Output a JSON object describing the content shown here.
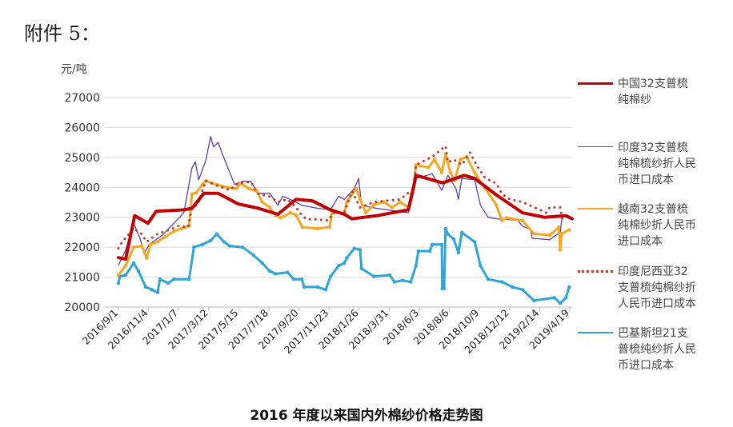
{
  "heading": "附件 5：",
  "chart_data": {
    "type": "line",
    "title": "2016 年度以来国内外棉纱价格走势图",
    "ylabel": "元/吨",
    "ylim": [
      20000,
      27000
    ],
    "yticks": [
      "20000",
      "21000",
      "22000",
      "23000",
      "24000",
      "25000",
      "26000",
      "27000"
    ],
    "xticks": [
      "2016/9/1",
      "2016/11/4",
      "2017/1/7",
      "2017/3/12",
      "2017/5/15",
      "2017/7/18",
      "2017/9/20",
      "2017/11/23",
      "2018/1/26",
      "2018/3/31",
      "2018/6/3",
      "2018/8/6",
      "2018/10/9",
      "2018/12/12",
      "2019/2/14",
      "2019/4/19"
    ],
    "grid": true,
    "legend_position": "right",
    "series": [
      {
        "name": "中国32支普梳纯棉纱",
        "color": "#c00000",
        "style": "solid-thick",
        "points": [
          [
            "2016/9/1",
            21650
          ],
          [
            "2016/9/16",
            21600
          ],
          [
            "2016/10/5",
            23050
          ],
          [
            "2016/11/2",
            22800
          ],
          [
            "2016/11/19",
            23200
          ],
          [
            "2017/1/16",
            23250
          ],
          [
            "2017/2/2",
            23300
          ],
          [
            "2017/2/27",
            23800
          ],
          [
            "2017/3/29",
            23800
          ],
          [
            "2017/5/9",
            23450
          ],
          [
            "2017/6/21",
            23300
          ],
          [
            "2017/8/1",
            23100
          ],
          [
            "2017/9/8",
            23600
          ],
          [
            "2017/10/12",
            23550
          ],
          [
            "2017/11/19",
            23250
          ],
          [
            "2017/12/18",
            23100
          ],
          [
            "2018/1/3",
            22950
          ],
          [
            "2018/2/23",
            23050
          ],
          [
            "2018/5/1",
            23250
          ],
          [
            "2018/5/12",
            24000
          ],
          [
            "2018/5/17",
            24400
          ],
          [
            "2018/7/12",
            24150
          ],
          [
            "2018/8/26",
            24400
          ],
          [
            "2018/9/17",
            24300
          ],
          [
            "2018/11/1",
            23750
          ],
          [
            "2018/12/26",
            23150
          ],
          [
            "2019/2/10",
            23000
          ],
          [
            "2019/3/27",
            23050
          ],
          [
            "2019/4/9",
            22950
          ]
        ]
      },
      {
        "name": "印度32支普梳纯棉梳纱折人民币进口成本",
        "color": "#5b3fb0",
        "style": "solid-thin",
        "points": [
          [
            "2016/9/1",
            21400
          ],
          [
            "2016/9/16",
            21900
          ],
          [
            "2016/10/3",
            22800
          ],
          [
            "2016/10/16",
            22300
          ],
          [
            "2016/10/25",
            21800
          ],
          [
            "2016/11/5",
            22100
          ],
          [
            "2016/12/2",
            22400
          ],
          [
            "2016/12/26",
            22800
          ],
          [
            "2017/1/16",
            23150
          ],
          [
            "2017/2/2",
            24650
          ],
          [
            "2017/2/9",
            24850
          ],
          [
            "2017/2/16",
            24250
          ],
          [
            "2017/3/3",
            24900
          ],
          [
            "2017/3/13",
            25700
          ],
          [
            "2017/3/19",
            25350
          ],
          [
            "2017/3/29",
            25500
          ],
          [
            "2017/4/7",
            25100
          ],
          [
            "2017/5/2",
            24100
          ],
          [
            "2017/5/19",
            24200
          ],
          [
            "2017/6/5",
            24200
          ],
          [
            "2017/6/21",
            23800
          ],
          [
            "2017/7/15",
            23800
          ],
          [
            "2017/8/1",
            23400
          ],
          [
            "2017/8/11",
            23700
          ],
          [
            "2017/8/27",
            23600
          ],
          [
            "2017/9/20",
            23400
          ],
          [
            "2017/10/23",
            23300
          ],
          [
            "2017/11/19",
            23250
          ],
          [
            "2017/12/6",
            23700
          ],
          [
            "2017/12/18",
            23600
          ],
          [
            "2018/1/8",
            23960
          ],
          [
            "2018/1/17",
            24300
          ],
          [
            "2018/1/23",
            23400
          ],
          [
            "2018/2/23",
            23300
          ],
          [
            "2018/5/1",
            23150
          ],
          [
            "2018/5/17",
            24300
          ],
          [
            "2018/6/20",
            24450
          ],
          [
            "2018/7/10",
            23900
          ],
          [
            "2018/7/23",
            24400
          ],
          [
            "2018/8/9",
            23950
          ],
          [
            "2018/8/14",
            23600
          ],
          [
            "2018/8/21",
            24300
          ],
          [
            "2018/9/17",
            24250
          ],
          [
            "2018/9/29",
            23400
          ],
          [
            "2018/10/15",
            23000
          ],
          [
            "2018/11/1",
            22950
          ],
          [
            "2018/12/16",
            22900
          ],
          [
            "2018/12/26",
            22700
          ],
          [
            "2019/1/12",
            22600
          ],
          [
            "2019/1/15",
            22300
          ],
          [
            "2019/2/21",
            22250
          ],
          [
            "2019/3/15",
            22500
          ],
          [
            "2019/3/18",
            22900
          ]
        ]
      },
      {
        "name": "越南32支普梳纯棉纱折人民币进口成本",
        "color": "#f5a623",
        "style": "solid-marker",
        "points": [
          [
            "2016/9/1",
            21070
          ],
          [
            "2016/9/16",
            21380
          ],
          [
            "2016/10/3",
            22000
          ],
          [
            "2016/10/20",
            22040
          ],
          [
            "2016/10/30",
            21640
          ],
          [
            "2016/11/7",
            22090
          ],
          [
            "2016/11/22",
            22180
          ],
          [
            "2016/12/8",
            22350
          ],
          [
            "2016/12/26",
            22530
          ],
          [
            "2017/1/11",
            22620
          ],
          [
            "2017/1/27",
            22710
          ],
          [
            "2017/2/2",
            23780
          ],
          [
            "2017/2/11",
            23820
          ],
          [
            "2017/2/24",
            24090
          ],
          [
            "2017/3/3",
            24220
          ],
          [
            "2017/3/26",
            24090
          ],
          [
            "2017/4/17",
            24000
          ],
          [
            "2017/5/6",
            23960
          ],
          [
            "2017/5/15",
            24130
          ],
          [
            "2017/6/1",
            23960
          ],
          [
            "2017/6/18",
            23870
          ],
          [
            "2017/6/29",
            23510
          ],
          [
            "2017/7/15",
            23330
          ],
          [
            "2017/7/27",
            23070
          ],
          [
            "2017/8/7",
            22980
          ],
          [
            "2017/8/27",
            23150
          ],
          [
            "2017/9/8",
            23070
          ],
          [
            "2017/9/21",
            22670
          ],
          [
            "2017/10/23",
            22620
          ],
          [
            "2017/11/17",
            22670
          ],
          [
            "2017/11/22",
            23150
          ],
          [
            "2017/12/18",
            23150
          ],
          [
            "2017/12/23",
            23510
          ],
          [
            "2018/1/12",
            23960
          ],
          [
            "2018/1/20",
            23600
          ],
          [
            "2018/2/1",
            23150
          ],
          [
            "2018/2/18",
            23420
          ],
          [
            "2018/3/11",
            23510
          ],
          [
            "2018/3/28",
            23330
          ],
          [
            "2018/4/14",
            23510
          ],
          [
            "2018/5/1",
            23330
          ],
          [
            "2018/5/14",
            24220
          ],
          [
            "2018/5/17",
            24750
          ],
          [
            "2018/6/12",
            24660
          ],
          [
            "2018/6/25",
            24930
          ],
          [
            "2018/7/10",
            24490
          ],
          [
            "2018/7/18",
            25110
          ],
          [
            "2018/7/28",
            24490
          ],
          [
            "2018/8/6",
            24220
          ],
          [
            "2018/8/18",
            24930
          ],
          [
            "2018/8/31",
            25020
          ],
          [
            "2018/9/17",
            24490
          ],
          [
            "2018/10/9",
            23960
          ],
          [
            "2018/11/1",
            23420
          ],
          [
            "2018/11/13",
            22890
          ],
          [
            "2018/11/23",
            22980
          ],
          [
            "2018/12/26",
            22890
          ],
          [
            "2019/1/19",
            22450
          ],
          [
            "2019/2/21",
            22400
          ],
          [
            "2019/3/12",
            22670
          ],
          [
            "2019/3/15",
            21910
          ],
          [
            "2019/3/18",
            22450
          ],
          [
            "2019/4/3",
            22580
          ]
        ]
      },
      {
        "name": "印度尼西亚32支普梳纯棉纱折人民币进口成本",
        "color": "#c0392b",
        "style": "dotted",
        "points": [
          [
            "2016/9/1",
            21960
          ],
          [
            "2016/9/9",
            22180
          ],
          [
            "2016/10/3",
            22620
          ],
          [
            "2016/10/20",
            22440
          ],
          [
            "2016/10/30",
            22180
          ],
          [
            "2016/11/22",
            22440
          ],
          [
            "2016/12/8",
            22530
          ],
          [
            "2017/1/5",
            22710
          ],
          [
            "2017/1/25",
            22670
          ],
          [
            "2017/2/2",
            23330
          ],
          [
            "2017/2/14",
            23420
          ],
          [
            "2017/3/3",
            24220
          ],
          [
            "2017/3/29",
            24040
          ],
          [
            "2017/4/22",
            23910
          ],
          [
            "2017/5/9",
            24130
          ],
          [
            "2017/6/5",
            24180
          ],
          [
            "2017/6/21",
            23780
          ],
          [
            "2017/7/15",
            23690
          ],
          [
            "2017/8/1",
            23510
          ],
          [
            "2017/8/21",
            23600
          ],
          [
            "2017/9/8",
            23330
          ],
          [
            "2017/9/20",
            23070
          ],
          [
            "2017/9/30",
            22930
          ],
          [
            "2017/10/23",
            22930
          ],
          [
            "2017/11/14",
            22890
          ],
          [
            "2017/11/25",
            23150
          ],
          [
            "2017/12/18",
            23150
          ],
          [
            "2018/1/3",
            23870
          ],
          [
            "2018/1/20",
            23330
          ],
          [
            "2018/2/18",
            23510
          ],
          [
            "2018/4/14",
            23600
          ],
          [
            "2018/5/12",
            23960
          ],
          [
            "2018/5/17",
            24750
          ],
          [
            "2018/6/20",
            25020
          ],
          [
            "2018/7/18",
            25380
          ],
          [
            "2018/7/23",
            24840
          ],
          [
            "2018/8/4",
            24930
          ],
          [
            "2018/8/21",
            24750
          ],
          [
            "2018/9/7",
            25160
          ],
          [
            "2018/9/24",
            24660
          ],
          [
            "2018/10/9",
            24310
          ],
          [
            "2018/11/1",
            24130
          ],
          [
            "2018/11/13",
            23780
          ],
          [
            "2018/11/30",
            23600
          ],
          [
            "2018/12/26",
            23510
          ],
          [
            "2019/2/14",
            23150
          ],
          [
            "2019/2/21",
            23330
          ],
          [
            "2019/3/15",
            23330
          ],
          [
            "2019/3/20",
            22890
          ]
        ]
      },
      {
        "name": "巴基斯坦21支普梳纯纱折人民币进口成本",
        "color": "#2fa4d9",
        "style": "solid-marker",
        "points": [
          [
            "2016/9/1",
            20800
          ],
          [
            "2016/9/4",
            21020
          ],
          [
            "2016/9/16",
            21070
          ],
          [
            "2016/10/3",
            21470
          ],
          [
            "2016/10/13",
            21200
          ],
          [
            "2016/10/28",
            20670
          ],
          [
            "2016/11/10",
            20580
          ],
          [
            "2016/11/22",
            20490
          ],
          [
            "2016/11/27",
            20930
          ],
          [
            "2016/12/14",
            20800
          ],
          [
            "2016/12/26",
            20930
          ],
          [
            "2017/1/27",
            20930
          ],
          [
            "2017/2/6",
            22000
          ],
          [
            "2017/2/24",
            22090
          ],
          [
            "2017/3/13",
            22220
          ],
          [
            "2017/3/26",
            22440
          ],
          [
            "2017/4/10",
            22180
          ],
          [
            "2017/4/22",
            22040
          ],
          [
            "2017/5/19",
            22000
          ],
          [
            "2017/6/11",
            21730
          ],
          [
            "2017/6/29",
            21470
          ],
          [
            "2017/7/15",
            21200
          ],
          [
            "2017/7/27",
            21110
          ],
          [
            "2017/8/21",
            21160
          ],
          [
            "2017/9/3",
            20930
          ],
          [
            "2017/9/20",
            20930
          ],
          [
            "2017/9/25",
            20670
          ],
          [
            "2017/10/23",
            20670
          ],
          [
            "2017/11/9",
            20580
          ],
          [
            "2017/11/19",
            21020
          ],
          [
            "2017/12/6",
            21380
          ],
          [
            "2017/12/18",
            21470
          ],
          [
            "2017/12/23",
            21640
          ],
          [
            "2018/1/8",
            21960
          ],
          [
            "2018/1/20",
            21910
          ],
          [
            "2018/1/23",
            21290
          ],
          [
            "2018/2/18",
            21020
          ],
          [
            "2018/3/23",
            21070
          ],
          [
            "2018/4/2",
            20840
          ],
          [
            "2018/4/19",
            20890
          ],
          [
            "2018/5/6",
            20840
          ],
          [
            "2018/5/17",
            21380
          ],
          [
            "2018/5/22",
            21870
          ],
          [
            "2018/6/15",
            21870
          ],
          [
            "2018/6/20",
            22090
          ],
          [
            "2018/7/10",
            22090
          ],
          [
            "2018/7/11",
            20620
          ],
          [
            "2018/7/15",
            20620
          ],
          [
            "2018/7/18",
            22620
          ],
          [
            "2018/7/23",
            22440
          ],
          [
            "2018/8/4",
            22270
          ],
          [
            "2018/8/14",
            21820
          ],
          [
            "2018/8/21",
            22490
          ],
          [
            "2018/9/17",
            22180
          ],
          [
            "2018/9/29",
            21380
          ],
          [
            "2018/10/15",
            20930
          ],
          [
            "2018/11/13",
            20840
          ],
          [
            "2018/12/5",
            20670
          ],
          [
            "2018/12/26",
            20580
          ],
          [
            "2019/1/19",
            20220
          ],
          [
            "2019/3/3",
            20310
          ],
          [
            "2019/3/15",
            20130
          ],
          [
            "2019/3/27",
            20310
          ],
          [
            "2019/4/3",
            20670
          ]
        ]
      }
    ]
  }
}
